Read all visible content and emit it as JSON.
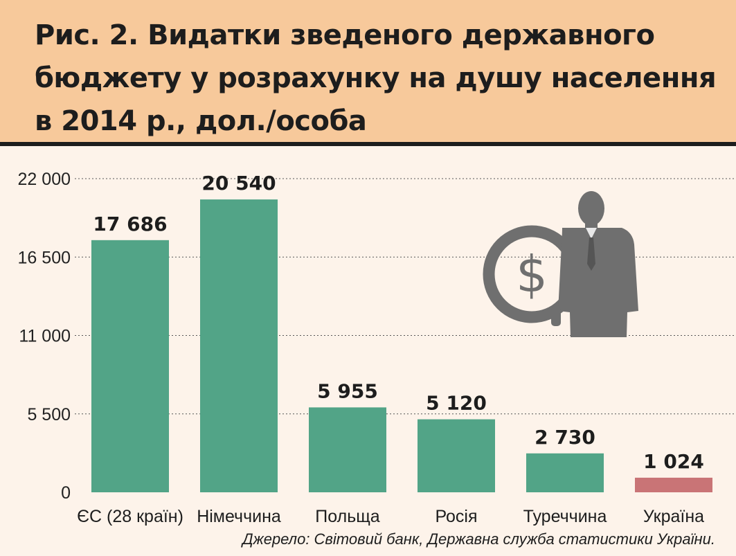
{
  "title": "Рис. 2. Видатки зведеного державного бюджету у розрахунку на душу населення в 2014 р., дол./особа",
  "source": "Джерело: Світовий банк, Державна служба статистики України.",
  "icons": [
    "dollar-coin-icon",
    "businessman-icon"
  ],
  "colors": {
    "header_bg": "#f7c99b",
    "bar": "#52a487",
    "bar_highlight": "#c97476",
    "background": "#fdf3ea",
    "icon": "#6f6f6f"
  },
  "chart_data": {
    "type": "bar",
    "categories": [
      "ЄС (28 країн)",
      "Німеччина",
      "Польща",
      "Росія",
      "Туреччина",
      "Україна"
    ],
    "values": [
      17686,
      20540,
      5955,
      5120,
      2730,
      1024
    ],
    "value_labels": [
      "17 686",
      "20 540",
      "5 955",
      "5 120",
      "2 730",
      "1 024"
    ],
    "highlight_index": 5,
    "ylim": [
      0,
      22000
    ],
    "yticks": [
      0,
      5500,
      11000,
      16500,
      22000
    ],
    "ytick_labels": [
      "0",
      "5 500",
      "11 000",
      "16 500",
      "22 000"
    ],
    "grid": true,
    "xlabel": "",
    "ylabel": ""
  }
}
